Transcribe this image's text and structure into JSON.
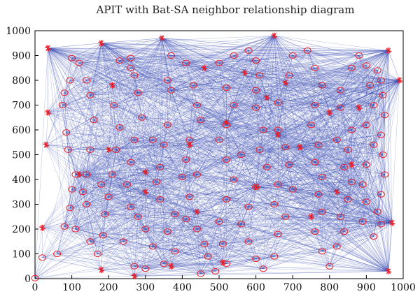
{
  "chart_data": {
    "type": "scatter",
    "title": "APIT with Bat-SA neighbor relationship diagram",
    "xlim": [
      0,
      1000
    ],
    "ylim": [
      0,
      1000
    ],
    "x_ticks": [
      0,
      100,
      200,
      300,
      400,
      500,
      600,
      700,
      800,
      900,
      1000
    ],
    "y_ticks": [
      0,
      100,
      200,
      300,
      400,
      500,
      600,
      700,
      800,
      900,
      1000
    ],
    "grid": false,
    "legend": "none",
    "colors": {
      "edges": "#3f51b5",
      "markers": "#e8202a"
    },
    "series": [
      {
        "marker": "circle",
        "points": [
          [
            0,
            2
          ],
          [
            20,
            85
          ],
          [
            60,
            100
          ],
          [
            80,
            210
          ],
          [
            95,
            285
          ],
          [
            100,
            360
          ],
          [
            110,
            420
          ],
          [
            90,
            520
          ],
          [
            85,
            590
          ],
          [
            75,
            700
          ],
          [
            80,
            750
          ],
          [
            95,
            800
          ],
          [
            100,
            890
          ],
          [
            120,
            870
          ],
          [
            140,
            800
          ],
          [
            150,
            740
          ],
          [
            160,
            640
          ],
          [
            150,
            520
          ],
          [
            140,
            420
          ],
          [
            130,
            350
          ],
          [
            140,
            300
          ],
          [
            150,
            150
          ],
          [
            170,
            100
          ],
          [
            185,
            175
          ],
          [
            190,
            260
          ],
          [
            200,
            330
          ],
          [
            210,
            420
          ],
          [
            220,
            520
          ],
          [
            230,
            610
          ],
          [
            215,
            700
          ],
          [
            230,
            880
          ],
          [
            260,
            850
          ],
          [
            260,
            890
          ],
          [
            270,
            820
          ],
          [
            280,
            750
          ],
          [
            290,
            650
          ],
          [
            270,
            560
          ],
          [
            260,
            470
          ],
          [
            250,
            380
          ],
          [
            260,
            290
          ],
          [
            280,
            250
          ],
          [
            300,
            200
          ],
          [
            320,
            130
          ],
          [
            300,
            40
          ],
          [
            270,
            50
          ],
          [
            350,
            60
          ],
          [
            380,
            110
          ],
          [
            360,
            190
          ],
          [
            380,
            260
          ],
          [
            340,
            320
          ],
          [
            330,
            390
          ],
          [
            340,
            450
          ],
          [
            350,
            540
          ],
          [
            360,
            620
          ],
          [
            370,
            760
          ],
          [
            360,
            800
          ],
          [
            370,
            900
          ],
          [
            410,
            870
          ],
          [
            430,
            780
          ],
          [
            440,
            700
          ],
          [
            450,
            640
          ],
          [
            420,
            560
          ],
          [
            410,
            480
          ],
          [
            400,
            410
          ],
          [
            420,
            330
          ],
          [
            410,
            240
          ],
          [
            440,
            200
          ],
          [
            460,
            140
          ],
          [
            470,
            90
          ],
          [
            450,
            20
          ],
          [
            490,
            30
          ],
          [
            520,
            60
          ],
          [
            510,
            140
          ],
          [
            500,
            230
          ],
          [
            520,
            320
          ],
          [
            540,
            400
          ],
          [
            520,
            480
          ],
          [
            500,
            560
          ],
          [
            520,
            620
          ],
          [
            540,
            700
          ],
          [
            520,
            770
          ],
          [
            500,
            870
          ],
          [
            540,
            900
          ],
          [
            580,
            920
          ],
          [
            600,
            880
          ],
          [
            610,
            820
          ],
          [
            600,
            760
          ],
          [
            600,
            690
          ],
          [
            620,
            600
          ],
          [
            610,
            520
          ],
          [
            630,
            450
          ],
          [
            600,
            370
          ],
          [
            580,
            290
          ],
          [
            560,
            220
          ],
          [
            580,
            150
          ],
          [
            600,
            80
          ],
          [
            620,
            40
          ],
          [
            650,
            90
          ],
          [
            660,
            180
          ],
          [
            680,
            250
          ],
          [
            650,
            300
          ],
          [
            660,
            380
          ],
          [
            690,
            460
          ],
          [
            680,
            530
          ],
          [
            660,
            600
          ],
          [
            660,
            710
          ],
          [
            690,
            820
          ],
          [
            700,
            900
          ],
          [
            740,
            920
          ],
          [
            760,
            850
          ],
          [
            780,
            780
          ],
          [
            760,
            700
          ],
          [
            750,
            620
          ],
          [
            770,
            540
          ],
          [
            760,
            470
          ],
          [
            780,
            410
          ],
          [
            770,
            340
          ],
          [
            780,
            270
          ],
          [
            760,
            190
          ],
          [
            780,
            110
          ],
          [
            800,
            50
          ],
          [
            820,
            130
          ],
          [
            840,
            190
          ],
          [
            830,
            250
          ],
          [
            850,
            320
          ],
          [
            860,
            390
          ],
          [
            840,
            450
          ],
          [
            850,
            520
          ],
          [
            860,
            600
          ],
          [
            830,
            690
          ],
          [
            830,
            760
          ],
          [
            860,
            850
          ],
          [
            880,
            900
          ],
          [
            900,
            860
          ],
          [
            910,
            780
          ],
          [
            920,
            700
          ],
          [
            900,
            620
          ],
          [
            920,
            540
          ],
          [
            900,
            460
          ],
          [
            890,
            380
          ],
          [
            900,
            310
          ],
          [
            890,
            230
          ],
          [
            920,
            170
          ],
          [
            940,
            220
          ],
          [
            930,
            270
          ],
          [
            940,
            340
          ],
          [
            950,
            420
          ],
          [
            945,
            500
          ],
          [
            940,
            580
          ],
          [
            950,
            660
          ],
          [
            945,
            740
          ],
          [
            940,
            800
          ],
          [
            930,
            840
          ],
          [
            110,
            200
          ],
          [
            180,
            380
          ],
          [
            240,
            150
          ],
          [
            320,
            560
          ],
          [
            440,
            420
          ],
          [
            560,
            500
          ],
          [
            700,
            360
          ],
          [
            820,
            560
          ]
        ]
      },
      {
        "marker": "star",
        "points": [
          [
            35,
            930
          ],
          [
            35,
            670
          ],
          [
            30,
            540
          ],
          [
            20,
            205
          ],
          [
            180,
            950
          ],
          [
            345,
            970
          ],
          [
            650,
            980
          ],
          [
            960,
            920
          ],
          [
            990,
            800
          ],
          [
            970,
            225
          ],
          [
            960,
            30
          ],
          [
            510,
            65
          ],
          [
            370,
            50
          ],
          [
            270,
            10
          ],
          [
            180,
            35
          ],
          [
            460,
            850
          ],
          [
            570,
            830
          ],
          [
            630,
            730
          ],
          [
            600,
            370
          ],
          [
            520,
            630
          ],
          [
            300,
            430
          ],
          [
            200,
            520
          ],
          [
            120,
            420
          ],
          [
            210,
            780
          ],
          [
            420,
            540
          ],
          [
            660,
            580
          ],
          [
            720,
            530
          ],
          [
            800,
            670
          ],
          [
            860,
            460
          ],
          [
            750,
            250
          ],
          [
            680,
            790
          ],
          [
            880,
            690
          ],
          [
            440,
            270
          ],
          [
            300,
            350
          ],
          [
            820,
            350
          ]
        ]
      }
    ]
  }
}
